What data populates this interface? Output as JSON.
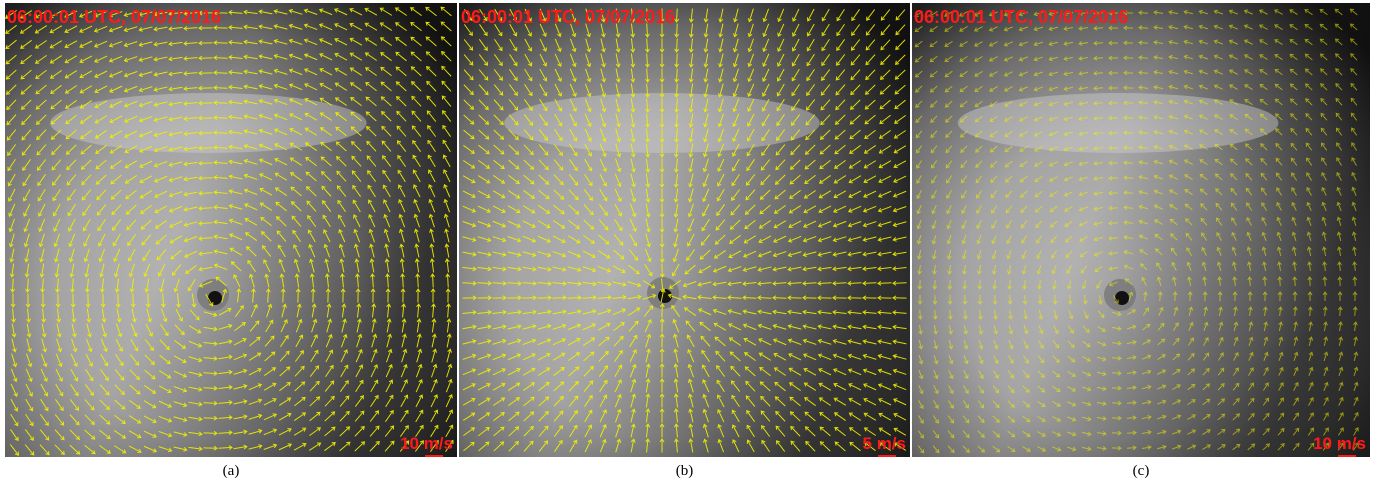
{
  "panels": [
    {
      "timestamp": "06:00:01 UTC, 07/07/2016",
      "scale_label": "10 m/s",
      "caption": "(a)"
    },
    {
      "timestamp": "06:00:01 UTC, 07/07/2016",
      "scale_label": "5 m/s",
      "caption": "(b)"
    },
    {
      "timestamp": "06:00:01 UTC, 07/07/2016",
      "scale_label": "10 m/s",
      "caption": "(c)"
    }
  ]
}
